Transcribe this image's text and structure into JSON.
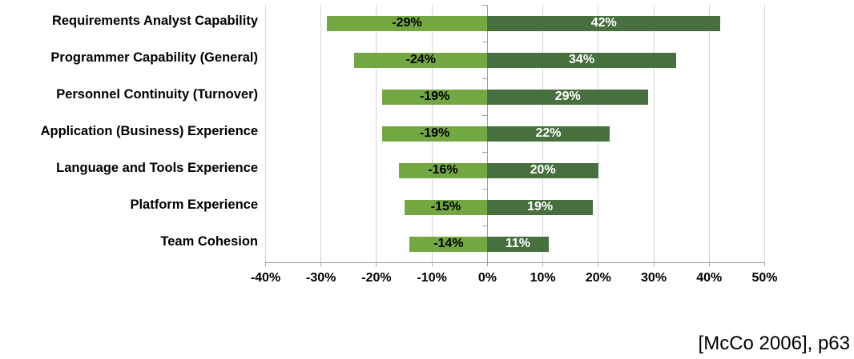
{
  "chart_data": {
    "type": "bar",
    "orientation": "horizontal-diverging",
    "title": "",
    "categories": [
      "Requirements Analyst Capability",
      "Programmer Capability (General)",
      "Personnel Continuity (Turnover)",
      "Application (Business) Experience",
      "Language and Tools Experience",
      "Platform Experience",
      "Team Cohesion"
    ],
    "series": [
      {
        "name": "decrease",
        "color": "#73A742",
        "values": [
          -29,
          -24,
          -19,
          -19,
          -16,
          -15,
          -14
        ],
        "labels": [
          "-29%",
          "-24%",
          "-19%",
          "-19%",
          "-16%",
          "-15%",
          "-14%"
        ],
        "label_color": "#000000"
      },
      {
        "name": "increase",
        "color": "#47703E",
        "values": [
          42,
          34,
          29,
          22,
          20,
          19,
          11
        ],
        "labels": [
          "42%",
          "34%",
          "29%",
          "22%",
          "20%",
          "19%",
          "11%"
        ],
        "label_color": "#FFFFFF"
      }
    ],
    "xlim": [
      -40,
      50
    ],
    "tick_step": 10,
    "x_tick_labels": [
      "-40%",
      "-30%",
      "-20%",
      "-10%",
      "0%",
      "10%",
      "20%",
      "30%",
      "40%",
      "50%"
    ],
    "grid": true,
    "gridline_color": "#D6D6D6",
    "axis_color": "#9E9E9E",
    "legend_position": "none"
  },
  "caption": {
    "text": "[McCo 2006], p63"
  }
}
